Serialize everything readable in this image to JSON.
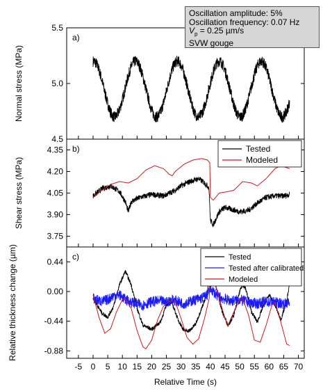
{
  "info_box": {
    "line1": "Oscillation amplitude: 5%",
    "line2": "Oscillation frequency: 0.07 Hz",
    "line3_symbol": "V",
    "line3_subscript": "p",
    "line3_rest": " = 0.25 µm/s",
    "line4": "SVW gouge"
  },
  "colors": {
    "tested": "#000000",
    "modeled": "#d01818",
    "calibrated": "#1a1aff"
  },
  "chart_data": [
    {
      "panel": "a)",
      "type": "line",
      "ylabel": "Normal stress (MPa)",
      "ylim": [
        4.5,
        5.5
      ],
      "yticks": [
        4.5,
        5.0,
        5.5
      ],
      "xlim": [
        -9,
        72
      ],
      "series": [
        {
          "style": "tested",
          "x_range": [
            0,
            67
          ],
          "mean": 4.95,
          "amplitude": 0.25,
          "period": 14.3,
          "phase": 1.5,
          "noise": 0.05
        }
      ]
    },
    {
      "panel": "b)",
      "type": "line",
      "ylabel": "Shear stress (MPa)",
      "ylim": [
        3.675,
        4.425
      ],
      "yticks": [
        3.75,
        3.9,
        4.05,
        4.2,
        4.35
      ],
      "legend_position": "top-right",
      "series": [
        {
          "name": "Tested",
          "style": "tested",
          "noise": 0.02,
          "points": [
            [
              0,
              4.03
            ],
            [
              3,
              4.08
            ],
            [
              6,
              4.1
            ],
            [
              9,
              4.06
            ],
            [
              11,
              3.99
            ],
            [
              12,
              3.92
            ],
            [
              13,
              3.99
            ],
            [
              16,
              4.02
            ],
            [
              20,
              4.04
            ],
            [
              24,
              4.03
            ],
            [
              26,
              4.05
            ],
            [
              28,
              4.07
            ],
            [
              30,
              4.1
            ],
            [
              33,
              4.13
            ],
            [
              36,
              4.15
            ],
            [
              38,
              4.12
            ],
            [
              39.5,
              4.09
            ],
            [
              40,
              3.86
            ],
            [
              41,
              3.83
            ],
            [
              43,
              3.92
            ],
            [
              45,
              3.95
            ],
            [
              50,
              3.92
            ],
            [
              53,
              3.93
            ],
            [
              56,
              3.98
            ],
            [
              59,
              4.02
            ],
            [
              62,
              4.03
            ],
            [
              65,
              4.03
            ],
            [
              67,
              4.04
            ]
          ]
        },
        {
          "name": "Modeled",
          "style": "modeled",
          "points": [
            [
              0,
              4.02
            ],
            [
              3,
              4.07
            ],
            [
              6,
              4.11
            ],
            [
              9,
              4.13
            ],
            [
              12,
              4.12
            ],
            [
              15,
              4.15
            ],
            [
              18,
              4.21
            ],
            [
              21,
              4.24
            ],
            [
              24,
              4.22
            ],
            [
              26,
              4.18
            ],
            [
              27,
              4.17
            ],
            [
              28,
              4.2
            ],
            [
              31,
              4.25
            ],
            [
              34,
              4.28
            ],
            [
              37,
              4.29
            ],
            [
              39,
              4.28
            ],
            [
              39.8,
              4.26
            ],
            [
              40,
              4.02
            ],
            [
              41,
              4.0
            ],
            [
              43,
              4.05
            ],
            [
              46,
              4.06
            ],
            [
              48,
              4.07
            ],
            [
              51,
              4.13
            ],
            [
              54,
              4.12
            ],
            [
              56,
              4.1
            ],
            [
              59,
              4.15
            ],
            [
              62,
              4.22
            ],
            [
              64,
              4.24
            ],
            [
              67,
              4.22
            ]
          ]
        }
      ]
    },
    {
      "panel": "c)",
      "type": "line",
      "ylabel": "Relative thickness change (µm)",
      "ylim": [
        -0.99,
        0.66
      ],
      "yticks": [
        -0.88,
        -0.44,
        0.0,
        0.44
      ],
      "xlabel": "Relative Time (s)",
      "xticks": [
        -5,
        0,
        5,
        10,
        15,
        20,
        25,
        30,
        35,
        40,
        45,
        50,
        55,
        60,
        65,
        70
      ],
      "legend_position": "top-right",
      "series": [
        {
          "name": "Tested",
          "style": "tested",
          "noise": 0.03,
          "points": [
            [
              0,
              -0.1
            ],
            [
              3,
              -0.32
            ],
            [
              5,
              -0.38
            ],
            [
              7,
              -0.22
            ],
            [
              9,
              0.1
            ],
            [
              11,
              0.3
            ],
            [
              13,
              0.1
            ],
            [
              15,
              -0.25
            ],
            [
              17,
              -0.5
            ],
            [
              20,
              -0.56
            ],
            [
              23,
              -0.45
            ],
            [
              25,
              -0.2
            ],
            [
              26,
              -0.14
            ],
            [
              27,
              -0.18
            ],
            [
              29,
              -0.42
            ],
            [
              31,
              -0.58
            ],
            [
              33,
              -0.58
            ],
            [
              35,
              -0.48
            ],
            [
              37,
              -0.25
            ],
            [
              39,
              0.0
            ],
            [
              40,
              0.3
            ],
            [
              41,
              0.26
            ],
            [
              42,
              0.05
            ],
            [
              44,
              -0.3
            ],
            [
              46,
              -0.5
            ],
            [
              48,
              -0.35
            ],
            [
              50,
              0.0
            ],
            [
              51,
              0.1
            ],
            [
              52,
              0.05
            ],
            [
              54,
              -0.3
            ],
            [
              56,
              -0.45
            ],
            [
              58,
              -0.22
            ],
            [
              60,
              -0.05
            ],
            [
              62,
              -0.2
            ],
            [
              64,
              -0.42
            ],
            [
              66,
              -0.15
            ],
            [
              67,
              0.12
            ]
          ]
        },
        {
          "name": "Tested after calibrated",
          "style": "calibrated",
          "noise": 0.08,
          "points": [
            [
              0,
              -0.1
            ],
            [
              3,
              -0.15
            ],
            [
              5,
              -0.12
            ],
            [
              7,
              -0.06
            ],
            [
              9,
              -0.05
            ],
            [
              11,
              -0.12
            ],
            [
              13,
              -0.16
            ],
            [
              15,
              -0.18
            ],
            [
              17,
              -0.2
            ],
            [
              20,
              -0.15
            ],
            [
              23,
              -0.14
            ],
            [
              25,
              -0.16
            ],
            [
              27,
              -0.12
            ],
            [
              29,
              -0.15
            ],
            [
              31,
              -0.18
            ],
            [
              33,
              -0.15
            ],
            [
              35,
              -0.12
            ],
            [
              37,
              -0.1
            ],
            [
              39,
              -0.05
            ],
            [
              40,
              0.05
            ],
            [
              42,
              -0.05
            ],
            [
              44,
              -0.1
            ],
            [
              47,
              -0.14
            ],
            [
              50,
              -0.12
            ],
            [
              53,
              -0.16
            ],
            [
              56,
              -0.18
            ],
            [
              59,
              -0.15
            ],
            [
              62,
              -0.16
            ],
            [
              65,
              -0.18
            ],
            [
              67,
              -0.17
            ]
          ]
        },
        {
          "name": "Modeled",
          "style": "modeled",
          "points": [
            [
              0,
              -0.05
            ],
            [
              2,
              -0.38
            ],
            [
              4,
              -0.62
            ],
            [
              6,
              -0.55
            ],
            [
              8,
              -0.3
            ],
            [
              10,
              -0.12
            ],
            [
              11,
              -0.1
            ],
            [
              13,
              -0.25
            ],
            [
              15,
              -0.58
            ],
            [
              17,
              -0.82
            ],
            [
              18,
              -0.85
            ],
            [
              20,
              -0.72
            ],
            [
              22,
              -0.42
            ],
            [
              24,
              -0.22
            ],
            [
              26,
              -0.14
            ],
            [
              28,
              -0.15
            ],
            [
              30,
              -0.4
            ],
            [
              32,
              -0.68
            ],
            [
              34,
              -0.78
            ],
            [
              36,
              -0.7
            ],
            [
              38,
              -0.4
            ],
            [
              39.6,
              -0.1
            ],
            [
              40,
              0.25
            ],
            [
              41,
              0.2
            ],
            [
              43,
              -0.1
            ],
            [
              45,
              -0.4
            ],
            [
              46,
              -0.5
            ],
            [
              48,
              -0.3
            ],
            [
              50,
              -0.12
            ],
            [
              51,
              -0.1
            ],
            [
              53,
              -0.35
            ],
            [
              55,
              -0.72
            ],
            [
              57,
              -0.75
            ],
            [
              59,
              -0.5
            ],
            [
              61,
              -0.2
            ],
            [
              62,
              -0.16
            ],
            [
              64,
              -0.45
            ],
            [
              66,
              -0.78
            ],
            [
              67,
              -0.8
            ]
          ]
        }
      ]
    }
  ]
}
